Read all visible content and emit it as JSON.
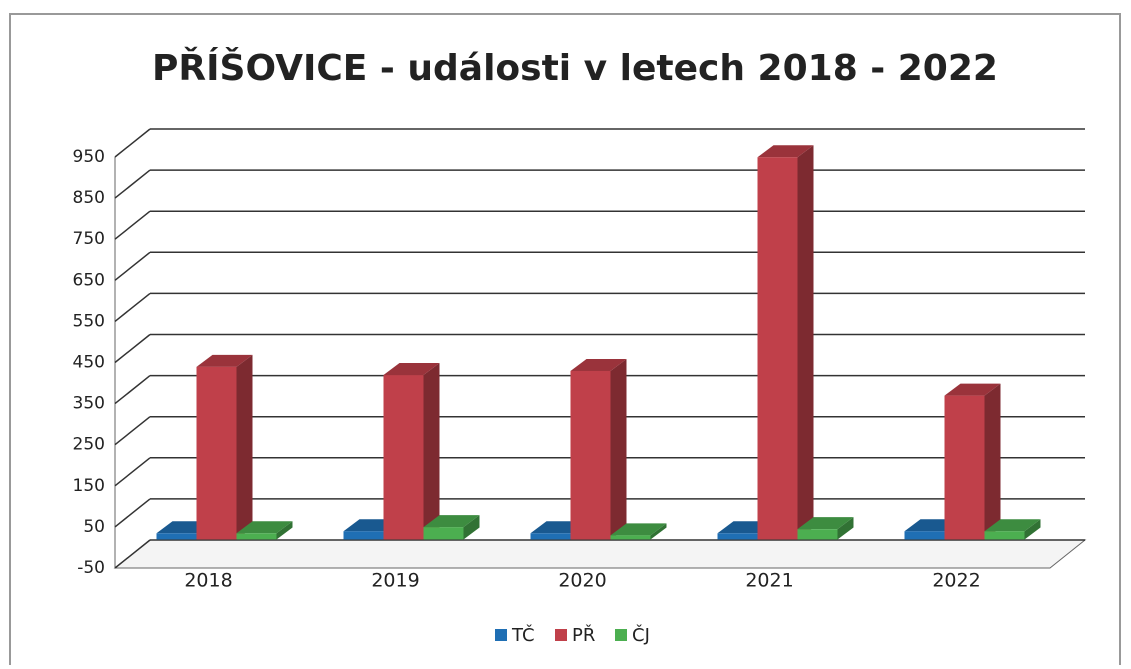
{
  "chart_data": {
    "type": "bar3d",
    "title": "PŘÍŠOVICE - události v letech 2018 - 2022",
    "categories": [
      "2018",
      "2019",
      "2020",
      "2021",
      "2022"
    ],
    "series": [
      {
        "name": "TČ",
        "color": "#1f6fb4",
        "values": [
          15,
          20,
          15,
          15,
          20
        ]
      },
      {
        "name": "PŘ",
        "color": "#c0404a",
        "values": [
          420,
          400,
          410,
          930,
          350
        ]
      },
      {
        "name": "ČJ",
        "color": "#4caf50",
        "values": [
          15,
          30,
          10,
          25,
          20
        ]
      }
    ],
    "ylim": [
      -50,
      950
    ],
    "yticks": [
      -50,
      50,
      150,
      250,
      350,
      450,
      550,
      650,
      750,
      850,
      950
    ],
    "grid": true,
    "legend": "bottom"
  }
}
